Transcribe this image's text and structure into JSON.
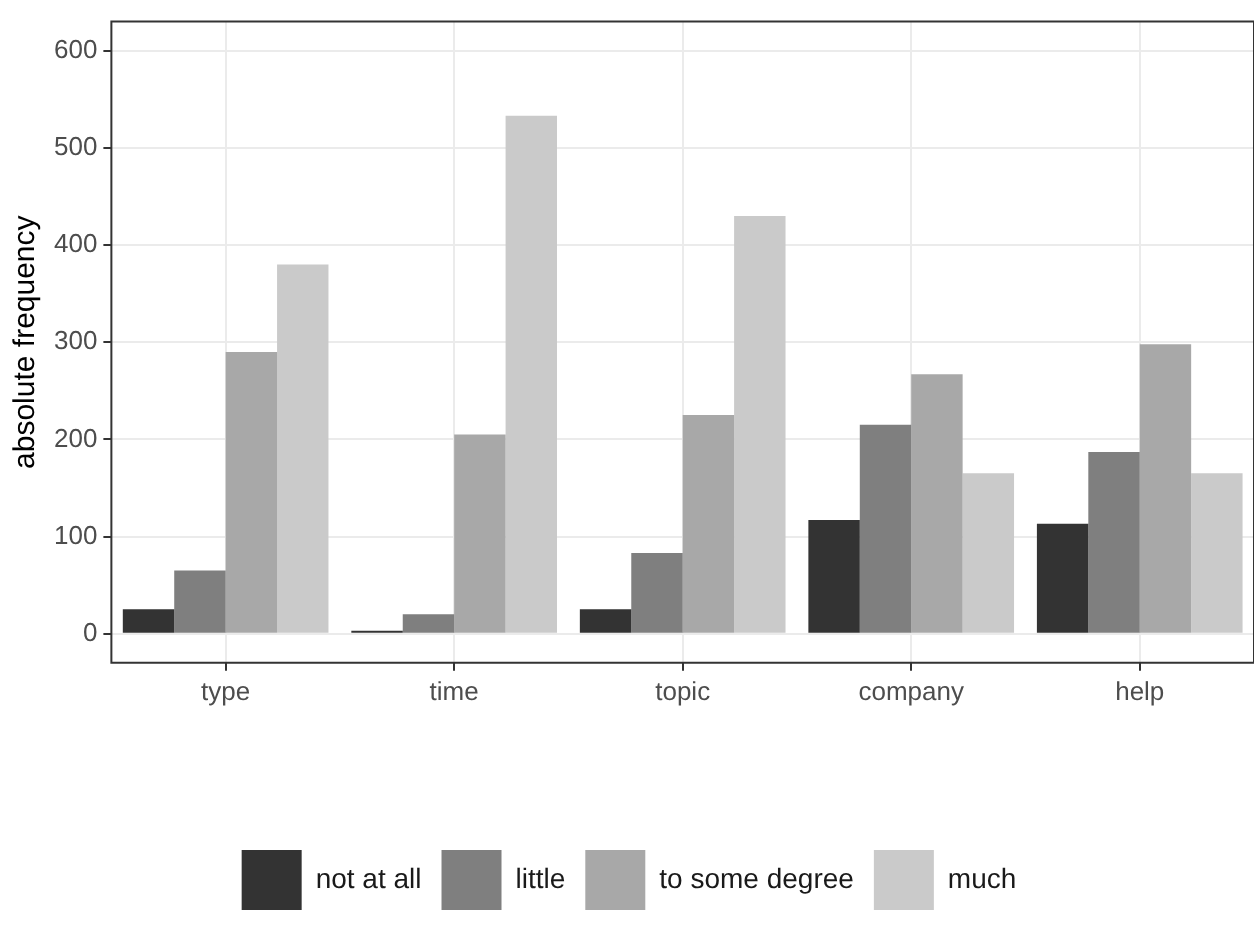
{
  "chart_data": {
    "type": "bar",
    "ylabel": "absolute frequency",
    "categories": [
      "type",
      "time",
      "topic",
      "company",
      "help"
    ],
    "series": [
      {
        "name": "not at all",
        "color": "#333333",
        "values": [
          25,
          3,
          25,
          117,
          113
        ]
      },
      {
        "name": "little",
        "color": "#7f7f7f",
        "values": [
          65,
          20,
          83,
          215,
          187
        ]
      },
      {
        "name": "to some degree",
        "color": "#a8a8a8",
        "values": [
          290,
          205,
          225,
          267,
          298
        ]
      },
      {
        "name": "much",
        "color": "#cacaca",
        "values": [
          380,
          533,
          430,
          165,
          165
        ]
      }
    ],
    "ylim": [
      -30,
      630
    ],
    "yticks": [
      0,
      100,
      200,
      300,
      400,
      500,
      600
    ],
    "grid": true,
    "legend": "bottom"
  }
}
